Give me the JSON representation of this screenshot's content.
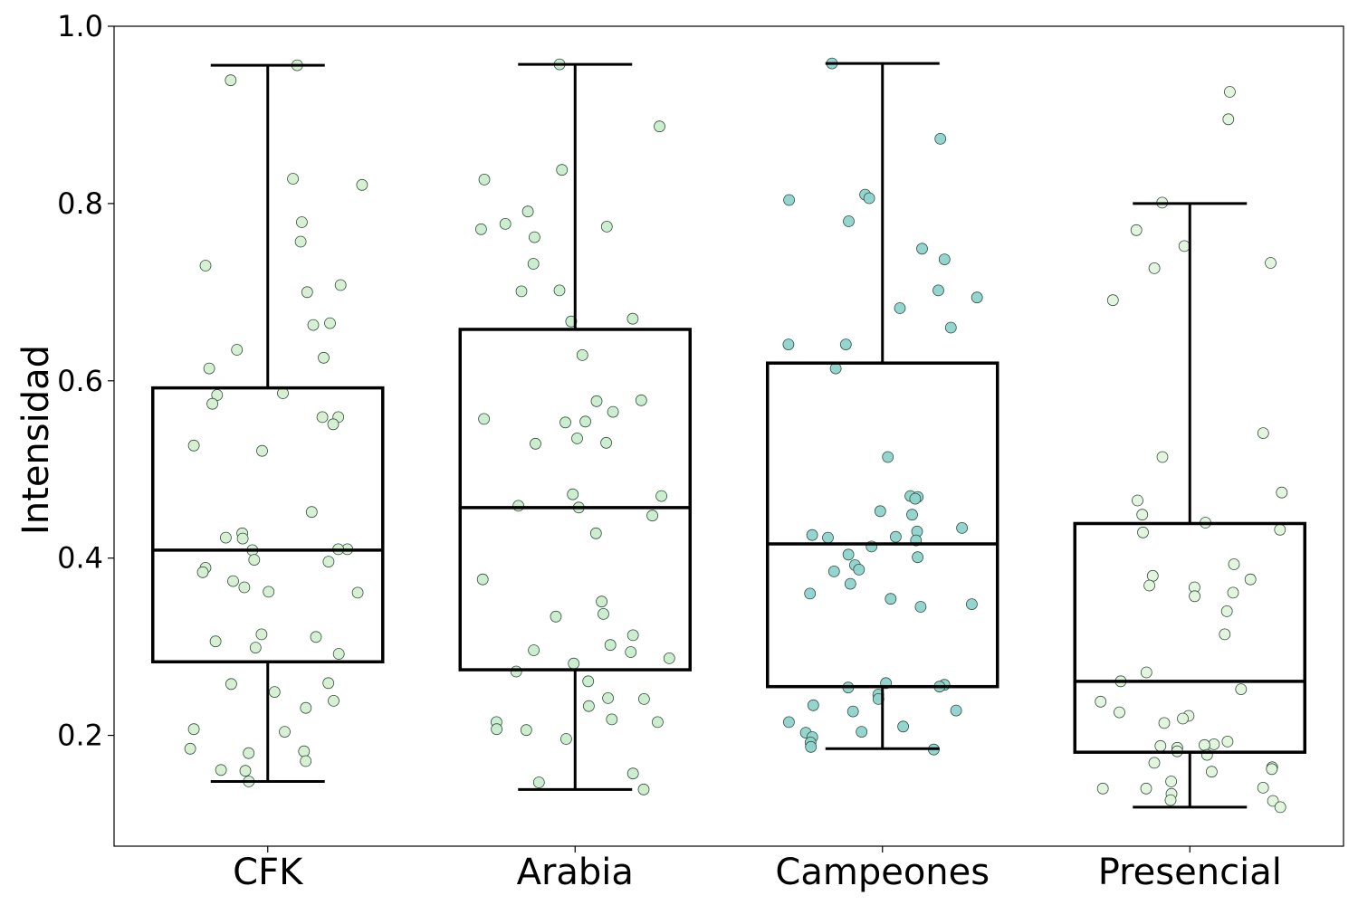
{
  "chart_data": {
    "type": "box",
    "title": "",
    "xlabel": "",
    "ylabel": "Intensidad",
    "ylim": [
      0.075,
      1.0
    ],
    "yticks": [
      "0.2",
      "0.4",
      "0.6",
      "0.8",
      "1.0"
    ],
    "categories": [
      "CFK",
      "Arabia",
      "Campeones",
      "Presencial"
    ],
    "point_colors": [
      "#d6efd0",
      "#c9eccb",
      "#8fd3cc",
      "#e2f4da"
    ],
    "box_color": "#000000",
    "series": [
      {
        "category": "CFK",
        "whisker_low": 0.148,
        "q1": 0.283,
        "median": 0.409,
        "q3": 0.592,
        "whisker_high": 0.956,
        "points": [
          0.956,
          0.939,
          0.828,
          0.821,
          0.779,
          0.757,
          0.73,
          0.708,
          0.7,
          0.665,
          0.663,
          0.635,
          0.626,
          0.614,
          0.586,
          0.584,
          0.574,
          0.559,
          0.559,
          0.551,
          0.527,
          0.521,
          0.452,
          0.428,
          0.423,
          0.422,
          0.41,
          0.41,
          0.409,
          0.398,
          0.396,
          0.389,
          0.384,
          0.374,
          0.367,
          0.362,
          0.361,
          0.314,
          0.311,
          0.306,
          0.299,
          0.292,
          0.259,
          0.258,
          0.249,
          0.239,
          0.231,
          0.207,
          0.204,
          0.185,
          0.182,
          0.18,
          0.171,
          0.161,
          0.16,
          0.148
        ]
      },
      {
        "category": "Arabia",
        "whisker_low": 0.139,
        "q1": 0.274,
        "median": 0.457,
        "q3": 0.658,
        "whisker_high": 0.957,
        "points": [
          0.957,
          0.887,
          0.838,
          0.827,
          0.791,
          0.777,
          0.774,
          0.771,
          0.762,
          0.732,
          0.702,
          0.701,
          0.67,
          0.667,
          0.629,
          0.578,
          0.577,
          0.565,
          0.557,
          0.554,
          0.553,
          0.535,
          0.53,
          0.529,
          0.472,
          0.47,
          0.459,
          0.457,
          0.448,
          0.428,
          0.376,
          0.351,
          0.337,
          0.334,
          0.313,
          0.302,
          0.296,
          0.294,
          0.287,
          0.281,
          0.272,
          0.261,
          0.242,
          0.241,
          0.233,
          0.218,
          0.215,
          0.215,
          0.207,
          0.206,
          0.196,
          0.157,
          0.147,
          0.139
        ]
      },
      {
        "category": "Campeones",
        "whisker_low": 0.185,
        "q1": 0.255,
        "median": 0.416,
        "q3": 0.62,
        "whisker_high": 0.958,
        "points": [
          0.958,
          0.873,
          0.81,
          0.806,
          0.804,
          0.78,
          0.749,
          0.737,
          0.702,
          0.694,
          0.682,
          0.66,
          0.641,
          0.641,
          0.614,
          0.514,
          0.47,
          0.469,
          0.467,
          0.453,
          0.449,
          0.434,
          0.43,
          0.426,
          0.424,
          0.423,
          0.42,
          0.413,
          0.404,
          0.401,
          0.392,
          0.387,
          0.385,
          0.371,
          0.36,
          0.354,
          0.348,
          0.345,
          0.259,
          0.257,
          0.255,
          0.254,
          0.246,
          0.241,
          0.234,
          0.228,
          0.227,
          0.215,
          0.21,
          0.204,
          0.203,
          0.198,
          0.192,
          0.187,
          0.184
        ]
      },
      {
        "category": "Presencial",
        "whisker_low": 0.119,
        "q1": 0.181,
        "median": 0.261,
        "q3": 0.439,
        "whisker_high": 0.8,
        "points": [
          0.926,
          0.895,
          0.801,
          0.77,
          0.752,
          0.733,
          0.727,
          0.691,
          0.541,
          0.514,
          0.474,
          0.465,
          0.449,
          0.44,
          0.432,
          0.429,
          0.393,
          0.38,
          0.376,
          0.369,
          0.367,
          0.361,
          0.357,
          0.34,
          0.314,
          0.271,
          0.261,
          0.252,
          0.238,
          0.226,
          0.222,
          0.219,
          0.214,
          0.193,
          0.19,
          0.189,
          0.188,
          0.186,
          0.182,
          0.178,
          0.169,
          0.164,
          0.162,
          0.159,
          0.148,
          0.141,
          0.14,
          0.14,
          0.134,
          0.127,
          0.126,
          0.119
        ]
      }
    ]
  }
}
